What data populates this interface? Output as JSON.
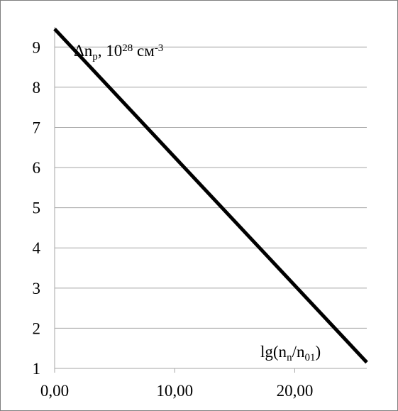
{
  "chart_data": {
    "type": "line",
    "title": "",
    "ylabel": {
      "parts": [
        {
          "text": "Δn",
          "style": "normal"
        },
        {
          "text": "p",
          "style": "sub"
        },
        {
          "text": ", 10",
          "style": "normal"
        },
        {
          "text": "28",
          "style": "sup"
        },
        {
          "text": " см",
          "style": "normal"
        },
        {
          "text": "-3",
          "style": "sup"
        }
      ]
    },
    "xlabel": {
      "parts": [
        {
          "text": "lg(n",
          "style": "normal"
        },
        {
          "text": "n",
          "style": "sub"
        },
        {
          "text": "/n",
          "style": "normal"
        },
        {
          "text": "01",
          "style": "sub"
        },
        {
          "text": ")",
          "style": "normal"
        }
      ]
    },
    "xlim": [
      0,
      26
    ],
    "ylim": [
      1,
      9.5
    ],
    "x_ticks": [
      0,
      10,
      20
    ],
    "x_tick_labels": [
      "0,00",
      "10,00",
      "20,00"
    ],
    "y_ticks": [
      1,
      2,
      3,
      4,
      5,
      6,
      7,
      8,
      9
    ],
    "y_tick_labels": [
      "1",
      "2",
      "3",
      "4",
      "5",
      "6",
      "7",
      "8",
      "9"
    ],
    "grid": "horizontal",
    "legend": "none",
    "series": [
      {
        "x": [
          0,
          26
        ],
        "y": [
          9.45,
          1.15
        ],
        "color": "#000000"
      }
    ],
    "colors": {
      "gridline": "#a6a6a6",
      "axis": "#a6a6a6",
      "line": "#000000",
      "frame": "#7f7f7f"
    }
  }
}
